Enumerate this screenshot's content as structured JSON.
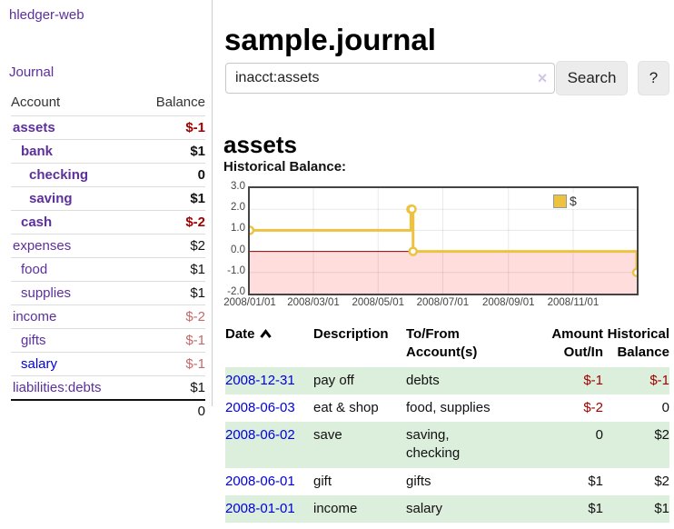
{
  "app": {
    "title": "hledger-web"
  },
  "sidebar": {
    "journal_link": "Journal",
    "table": {
      "account_header": "Account",
      "balance_header": "Balance",
      "rows": [
        {
          "name": "assets",
          "balance": "$-1",
          "depth": 1,
          "bold": true,
          "blue": false
        },
        {
          "name": "bank",
          "balance": "$1",
          "depth": 2,
          "bold": true,
          "blue": false
        },
        {
          "name": "checking",
          "balance": "0",
          "depth": 3,
          "bold": true,
          "blue": false
        },
        {
          "name": "saving",
          "balance": "$1",
          "depth": 3,
          "bold": true,
          "blue": false
        },
        {
          "name": "cash",
          "balance": "$-2",
          "depth": 2,
          "bold": true,
          "blue": false
        },
        {
          "name": "expenses",
          "balance": "$2",
          "depth": 1,
          "bold": false,
          "blue": false
        },
        {
          "name": "food",
          "balance": "$1",
          "depth": 2,
          "bold": false,
          "blue": false
        },
        {
          "name": "supplies",
          "balance": "$1",
          "depth": 2,
          "bold": false,
          "blue": false
        },
        {
          "name": "income",
          "balance": "$-2",
          "depth": 1,
          "bold": false,
          "blue": false
        },
        {
          "name": "gifts",
          "balance": "$-1",
          "depth": 2,
          "bold": false,
          "blue": false
        },
        {
          "name": "salary",
          "balance": "$-1",
          "depth": 2,
          "bold": false,
          "blue": true
        },
        {
          "name": "liabilities:debts",
          "balance": "$1",
          "depth": 1,
          "bold": false,
          "blue": false
        }
      ],
      "total": "0"
    }
  },
  "main": {
    "title": "sample.journal",
    "search": {
      "value": "inacct:assets",
      "clear_icon": "×",
      "search_button": "Search",
      "help_button": "?"
    },
    "account_heading": "assets",
    "chart_label": "Historical Balance:"
  },
  "chart_data": {
    "type": "line",
    "title": "Historical Balance",
    "step": true,
    "series": [
      {
        "name": "$",
        "points": [
          [
            "2008-01-01",
            1
          ],
          [
            "2008-06-01",
            2
          ],
          [
            "2008-06-02",
            2
          ],
          [
            "2008-06-03",
            0
          ],
          [
            "2008-12-31",
            -1
          ]
        ]
      }
    ],
    "xlim": [
      "2008-01-01",
      "2008-12-31"
    ],
    "ylim": [
      -2,
      3
    ],
    "x_ticks": [
      "2008/01/01",
      "2008/03/01",
      "2008/05/01",
      "2008/07/01",
      "2008/09/01",
      "2008/11/01"
    ],
    "y_ticks": [
      "3.0",
      "2.0",
      "1.0",
      "0.0",
      "-1.0",
      "-2.0"
    ],
    "legend": {
      "label": "$",
      "position": "top-right"
    },
    "negative_region_shaded": true,
    "grid": true
  },
  "register": {
    "headers": [
      "Date",
      "Description",
      "To/From\nAccount(s)",
      "Amount\nOut/In",
      "Historical\nBalance"
    ],
    "sort_column": "Date",
    "sort_direction": "ascending",
    "rows": [
      {
        "date": "2008-12-31",
        "description": "pay off",
        "accounts": "debts",
        "amount": "$-1",
        "balance": "$-1"
      },
      {
        "date": "2008-06-03",
        "description": "eat & shop",
        "accounts": "food, supplies",
        "amount": "$-2",
        "balance": "0"
      },
      {
        "date": "2008-06-02",
        "description": "save",
        "accounts": "saving,\nchecking",
        "amount": "0",
        "balance": "$2"
      },
      {
        "date": "2008-06-01",
        "description": "gift",
        "accounts": "gifts",
        "amount": "$1",
        "balance": "$2"
      },
      {
        "date": "2008-01-01",
        "description": "income",
        "accounts": "salary",
        "amount": "$1",
        "balance": "$1"
      }
    ]
  },
  "colors": {
    "link_purple": "#5c2f9e",
    "link_blue": "#0000dd",
    "negative_dark": "#a40000",
    "negative_light": "#c46a6a",
    "row_stripe_green": "#dceedc",
    "chart_line": "#edc240",
    "chart_negative_fill": "#ffdddd",
    "zero_line": "#8b0000",
    "button_bg": "#ececec"
  }
}
